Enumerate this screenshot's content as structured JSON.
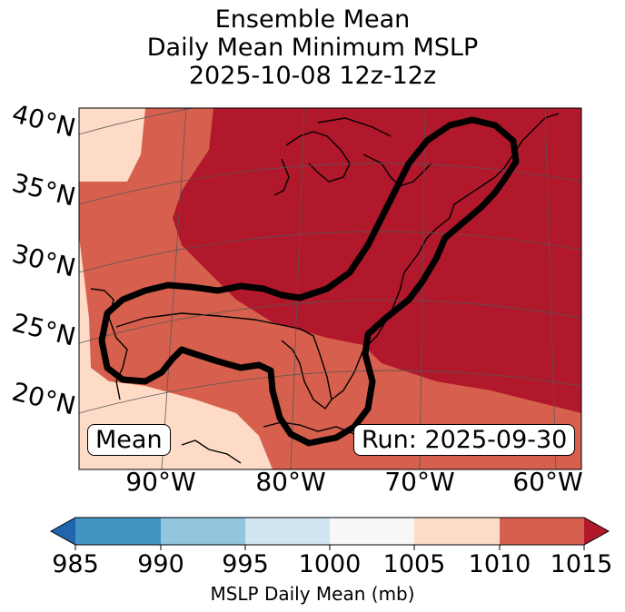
{
  "title": {
    "line1": "Ensemble Mean",
    "line2": "Daily Mean Minimum MSLP",
    "line3": "2025-10-08 12z-12z"
  },
  "map": {
    "lat_labels": [
      "40°N",
      "35°N",
      "30°N",
      "25°N",
      "20°N"
    ],
    "lon_labels": [
      "90°W",
      "80°W",
      "70°W",
      "60°W"
    ],
    "mean_label": "Mean",
    "run_label": "Run: 2025-09-30"
  },
  "colorbar": {
    "ticks": [
      "985",
      "990",
      "995",
      "1000",
      "1005",
      "1010",
      "1015"
    ],
    "label": "MSLP Daily Mean (mb)",
    "colors": [
      "#2166ac",
      "#4393c3",
      "#92c5de",
      "#d1e5f0",
      "#f7f7f7",
      "#fddbc7",
      "#d6604d",
      "#b2182b"
    ]
  },
  "fill_colors": {
    "c1005_1010": "#fddbc7",
    "c1010_1015": "#d6604d",
    "c1015_plus": "#b2182b"
  }
}
